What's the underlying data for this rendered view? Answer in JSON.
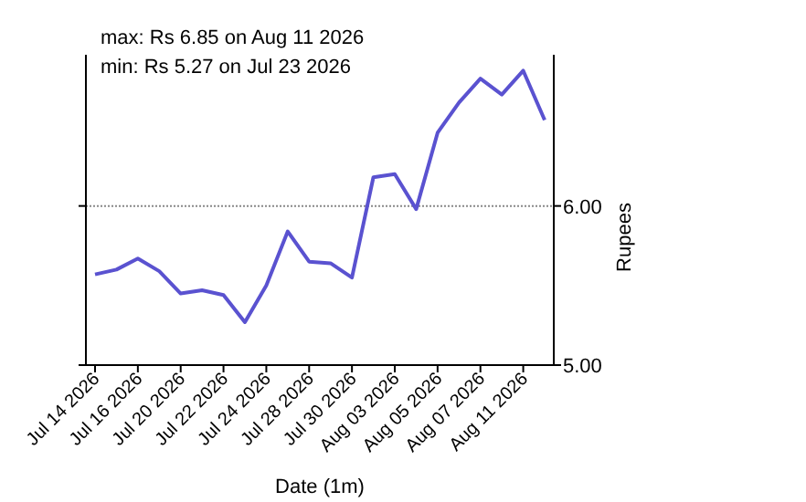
{
  "chart_data": {
    "type": "line",
    "title": "max: Rs 6.85 on Aug 11 2026",
    "subtitle": "min: Rs 5.27 on Jul 23 2026",
    "xlabel": "Date (1m)",
    "ylabel": "Rupees",
    "categories": [
      "Jul 14 2026",
      null,
      "Jul 16 2026",
      null,
      "Jul 20 2026",
      null,
      "Jul 22 2026",
      null,
      "Jul 24 2026",
      null,
      "Jul 28 2026",
      null,
      "Jul 30 2026",
      null,
      "Aug 03 2026",
      null,
      "Aug 05 2026",
      null,
      "Aug 07 2026",
      null,
      "Aug 11 2026",
      null
    ],
    "series": [
      {
        "color": "#5a52d0",
        "values": [
          5.57,
          5.6,
          5.67,
          5.59,
          5.45,
          5.47,
          5.44,
          5.27,
          5.5,
          5.84,
          5.65,
          5.64,
          5.55,
          6.18,
          6.2,
          5.98,
          6.46,
          6.65,
          6.8,
          6.7,
          6.85,
          6.54
        ]
      }
    ],
    "ylim": [
      5,
      6.95
    ],
    "yticks": [
      {
        "value": 5,
        "label": "5.00"
      },
      {
        "value": 6,
        "label": "6.00"
      }
    ],
    "grid": "y",
    "marker": "none",
    "line_style": "solid"
  }
}
